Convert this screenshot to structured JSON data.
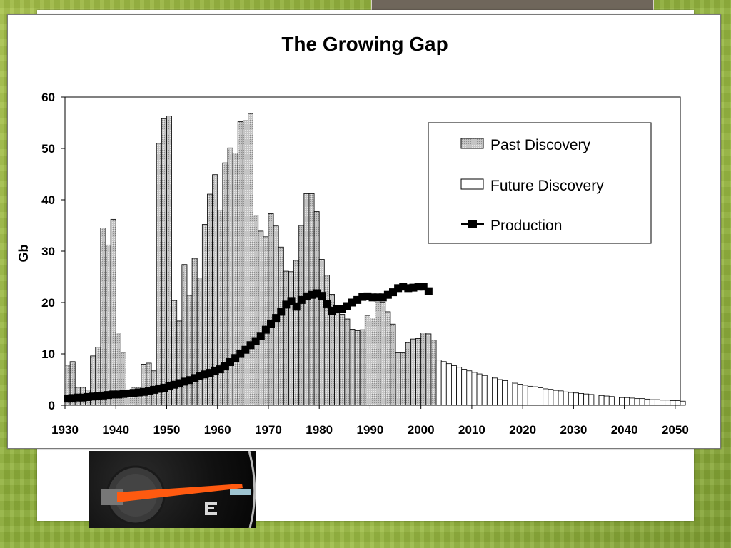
{
  "chart_data": {
    "type": "bar",
    "title": "The Growing Gap",
    "ylabel": "Gb",
    "xlabel": "",
    "xlim": [
      1930,
      2051
    ],
    "ylim": [
      0,
      60
    ],
    "yticks": [
      "0",
      "10",
      "20",
      "30",
      "40",
      "50",
      "60"
    ],
    "xticks": [
      "1930",
      "1940",
      "1950",
      "1960",
      "1970",
      "1980",
      "1990",
      "2000",
      "2010",
      "2020",
      "2030",
      "2040",
      "2050"
    ],
    "legend_position": "top-right",
    "legend": [
      {
        "label": "Past Discovery",
        "kind": "bar-gray"
      },
      {
        "label": "Future Discovery",
        "kind": "bar-white"
      },
      {
        "label": "Production",
        "kind": "line-marker"
      }
    ],
    "series": [
      {
        "name": "Past Discovery",
        "x_start": 1930,
        "values": [
          7.8,
          8.5,
          3.5,
          3.5,
          3,
          9.6,
          11.3,
          34.5,
          31.2,
          36.2,
          14.1,
          10.3,
          3,
          3.5,
          3.5,
          8,
          8.2,
          6.7,
          51,
          55.8,
          56.3,
          20.4,
          16.4,
          27.4,
          21.4,
          28.6,
          24.8,
          35.2,
          41.1,
          44.9,
          38,
          47.2,
          50.1,
          49.1,
          55.2,
          55.4,
          56.8,
          37,
          33.9,
          32.8,
          37.3,
          34.9,
          30.8,
          26.1,
          26,
          28.2,
          35,
          41.2,
          41.2,
          37.7,
          28.4,
          25.3,
          21.6,
          19.3,
          17.7,
          16.8,
          14.8,
          14.5,
          14.7,
          17.5,
          17,
          20,
          20.1,
          18.2,
          15.8,
          10.2,
          10.2,
          12.2,
          12.9,
          13,
          14.1,
          13.9,
          12.7
        ]
      },
      {
        "name": "Future Discovery",
        "x_start": 2003,
        "values": [
          8.8,
          8.5,
          8.1,
          7.7,
          7.4,
          7,
          6.7,
          6.4,
          6.1,
          5.8,
          5.5,
          5.3,
          5,
          4.8,
          4.5,
          4.3,
          4.1,
          3.9,
          3.7,
          3.6,
          3.4,
          3.2,
          3.1,
          2.9,
          2.8,
          2.6,
          2.5,
          2.4,
          2.3,
          2.2,
          2.1,
          2,
          1.9,
          1.8,
          1.7,
          1.6,
          1.5,
          1.5,
          1.4,
          1.3,
          1.3,
          1.2,
          1.1,
          1.1,
          1,
          1,
          0.9,
          0.9,
          0.8
        ]
      },
      {
        "name": "Production",
        "x_start": 1930,
        "values": [
          1.3,
          1.4,
          1.5,
          1.5,
          1.6,
          1.7,
          1.8,
          1.9,
          2,
          2.1,
          2.1,
          2.2,
          2.3,
          2.4,
          2.5,
          2.6,
          2.8,
          3,
          3.2,
          3.4,
          3.7,
          4,
          4.3,
          4.6,
          4.9,
          5.3,
          5.7,
          6,
          6.3,
          6.6,
          7,
          7.6,
          8.4,
          9.2,
          10,
          10.8,
          11.7,
          12.5,
          13.5,
          14.7,
          15.8,
          17,
          18.2,
          19.6,
          20.3,
          19.2,
          20.5,
          21.2,
          21.5,
          21.8,
          21.3,
          19.8,
          18.4,
          18.8,
          18.7,
          19.3,
          20,
          20.5,
          21.1,
          21.2,
          21,
          21,
          21,
          21.5,
          22,
          22.8,
          23.1,
          22.8,
          22.9,
          23.1,
          23.1,
          22.2
        ]
      }
    ]
  }
}
